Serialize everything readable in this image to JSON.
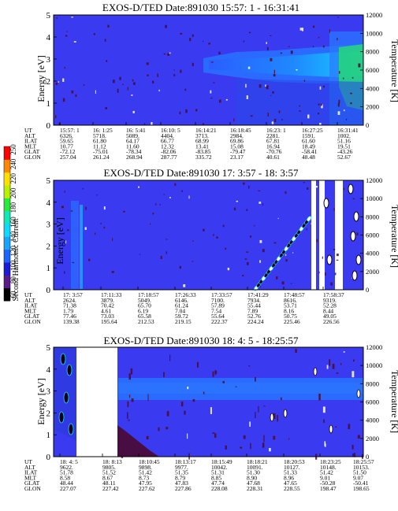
{
  "colors": {
    "background_blue": "#3a3af0",
    "band_blue": "#2a6aff",
    "band_cyan": "#19b7ff",
    "band_green": "#20d890",
    "contour_dark": "#4a0a30"
  },
  "colorbar": {
    "label": "Second Harmonic Current",
    "ticks": [
      "60",
      "80",
      "100",
      "120",
      "140",
      "160",
      "180",
      "200",
      "220",
      "240",
      "250"
    ],
    "colors": [
      "#000000",
      "#5a1a8a",
      "#1b1bd8",
      "#1e64ff",
      "#17a5ff",
      "#11d8ff",
      "#13e8b8",
      "#28ea3a",
      "#b8f000",
      "#ffe000",
      "#ff8800",
      "#ff0000"
    ]
  },
  "chart_data": [
    {
      "type": "heatmap",
      "title": "EXOS-D/TED",
      "date_label": "Date:891030",
      "time_range": "15:57: 1 - 16:31:41",
      "ylabel": "Energy [eV]",
      "ylabel_right": "Temperature [K]",
      "ylim": [
        0,
        5
      ],
      "ylim_right": [
        0,
        12000
      ],
      "yticks": [
        "0",
        "1",
        "2",
        "3",
        "4",
        "5"
      ],
      "yticks_right": [
        "0",
        "2000",
        "4000",
        "6000",
        "8000",
        "10000",
        "12000"
      ],
      "row_labels": [
        "UT",
        "ALT",
        "ILAT",
        "MLT",
        "GLAT",
        "GLON"
      ],
      "columns": [
        [
          "15:57: 1",
          "6326.",
          "59.65",
          "10.77",
          "-72.12",
          "257.04"
        ],
        [
          "16: 1:25",
          "5718.",
          "61.80",
          "11.12",
          "-75.01",
          "261.24"
        ],
        [
          "16: 5:41",
          "5089.",
          "64.17",
          "11.60",
          "-78.34",
          "268.94"
        ],
        [
          "16:10: 5",
          "4404.",
          "66.77",
          "12.32",
          "-82.06",
          "287.77"
        ],
        [
          "16:14:21",
          "3713.",
          "68.99",
          "13.41",
          "-83.85",
          "335.72"
        ],
        [
          "16:18:45",
          "2984.",
          "69.86",
          "15.08",
          "-79.47",
          "23.17"
        ],
        [
          "16:23: 1",
          "2281.",
          "67.81",
          "16.94",
          "-70.76",
          "40.61"
        ],
        [
          "16:27:25",
          "1591.",
          "61.60",
          "18.49",
          "-58.41",
          "48.48"
        ],
        [
          "16:31:41",
          "1002.",
          "51.16",
          "19.51",
          "-43.26",
          "52.67"
        ]
      ]
    },
    {
      "type": "heatmap",
      "title": "EXOS-D/TED",
      "date_label": "Date:891030",
      "time_range": "17: 3:57 - 18: 3:57",
      "ylabel": "Energy [eV]",
      "ylabel_right": "Temperature [K]",
      "ylim": [
        0,
        5
      ],
      "ylim_right": [
        0,
        12000
      ],
      "yticks": [
        "0",
        "1",
        "2",
        "3",
        "4",
        "5"
      ],
      "yticks_right": [
        "0",
        "2000",
        "4000",
        "6000",
        "8000",
        "10000",
        "12000"
      ],
      "row_labels": [
        "UT",
        "ALT",
        "ILAT",
        "MLT",
        "GLAT",
        "GLON"
      ],
      "columns": [
        [
          "17: 3:57",
          "2624.",
          "71.38",
          "1.79",
          "77.46",
          "139.38"
        ],
        [
          "17:11:33",
          "3879.",
          "70.42",
          "4.61",
          "73.03",
          "195.64"
        ],
        [
          "17:18:57",
          "5049.",
          "65.70",
          "6.19",
          "65.58",
          "212.53"
        ],
        [
          "17:26:33",
          "6146.",
          "61.24",
          "7.04",
          "59.72",
          "219.15"
        ],
        [
          "17:33:57",
          "7100.",
          "57.89",
          "7.54",
          "55.64",
          "222.37"
        ],
        [
          "17:41:29",
          "7934.",
          "55.44",
          "7.89",
          "52.76",
          "224.24"
        ],
        [
          "17:48:57",
          "8616.",
          "53.71",
          "8.16",
          "50.75",
          "225.46"
        ],
        [
          "17:58:37",
          "9319.",
          "52.28",
          "8.44",
          "49.05",
          "226.56"
        ]
      ]
    },
    {
      "type": "heatmap",
      "title": "EXOS-D/TED",
      "date_label": "Date:891030",
      "time_range": "18: 4: 5 - 18:25:57",
      "ylabel": "Energy [eV]",
      "ylabel_right": "Temperature [K]",
      "ylim": [
        0,
        5
      ],
      "ylim_right": [
        0,
        12000
      ],
      "yticks": [
        "0",
        "1",
        "2",
        "3",
        "4",
        "5"
      ],
      "yticks_right": [
        "0",
        "2000",
        "4000",
        "6000",
        "8000",
        "10000",
        "12000"
      ],
      "row_labels": [
        "UT",
        "ALT",
        "ILAT",
        "MLT",
        "GLAT",
        "GLON"
      ],
      "columns": [
        [
          "18: 4: 5",
          "9622.",
          "51.78",
          "8.58",
          "48.44",
          "227.07"
        ],
        [
          "18: 8:13",
          "9805.",
          "51.52",
          "8.67",
          "48.11",
          "227.42"
        ],
        [
          "18:10:45",
          "9898.",
          "51.42",
          "8.73",
          "47.95",
          "227.62"
        ],
        [
          "18:13:17",
          "9977.",
          "51.35",
          "8.79",
          "47.83",
          "227.86"
        ],
        [
          "18:15:49",
          "10042.",
          "51.31",
          "8.85",
          "47.74",
          "228.08"
        ],
        [
          "18:18:21",
          "10091.",
          "51.30",
          "8.90",
          "47.68",
          "228.31"
        ],
        [
          "18:20:53",
          "10127.",
          "51.33",
          "8.96",
          "47.65",
          "228.55"
        ],
        [
          "18:23:25",
          "10148.",
          "51.42",
          "9.01",
          "-50.28",
          "198.47"
        ],
        [
          "18:25:57",
          "10153.",
          "51.50",
          "9.07",
          "-50.41",
          "198.65"
        ]
      ]
    }
  ]
}
